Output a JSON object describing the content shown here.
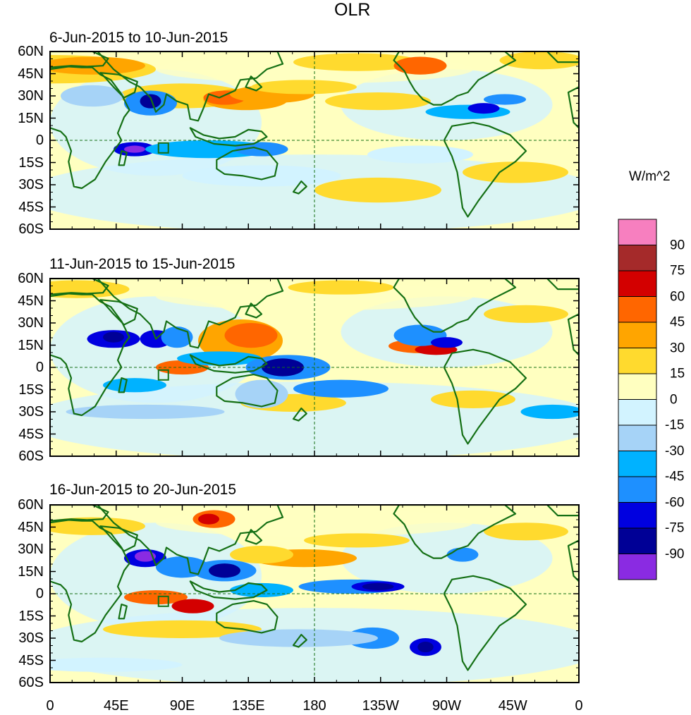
{
  "title": "OLR",
  "units": "W/m^2",
  "panels": [
    {
      "title": "6-Jun-2015 to 10-Jun-2015"
    },
    {
      "title": "11-Jun-2015 to 15-Jun-2015"
    },
    {
      "title": "16-Jun-2015 to 20-Jun-2015"
    }
  ],
  "lat_ticks": [
    "60N",
    "45N",
    "30N",
    "15N",
    "0",
    "15S",
    "30S",
    "45S",
    "60S"
  ],
  "lon_ticks": [
    "0",
    "45E",
    "90E",
    "135E",
    "180",
    "135W",
    "90W",
    "45W",
    "0"
  ],
  "colorbar": {
    "levels": [
      "90",
      "75",
      "60",
      "45",
      "30",
      "15",
      "0",
      "-15",
      "-30",
      "-45",
      "-60",
      "-75",
      "-90"
    ],
    "colors": [
      "#f77fbf",
      "#a52a2a",
      "#d30000",
      "#ff6600",
      "#ffa500",
      "#ffda2e",
      "#ffffc0",
      "#d2f3ff",
      "#a6d3f7",
      "#00b2ff",
      "#1e90ff",
      "#0000e0",
      "#000096",
      "#8a2be2"
    ]
  },
  "palette": {
    "land_outline": "#157015",
    "reference_line": "#157015"
  }
}
